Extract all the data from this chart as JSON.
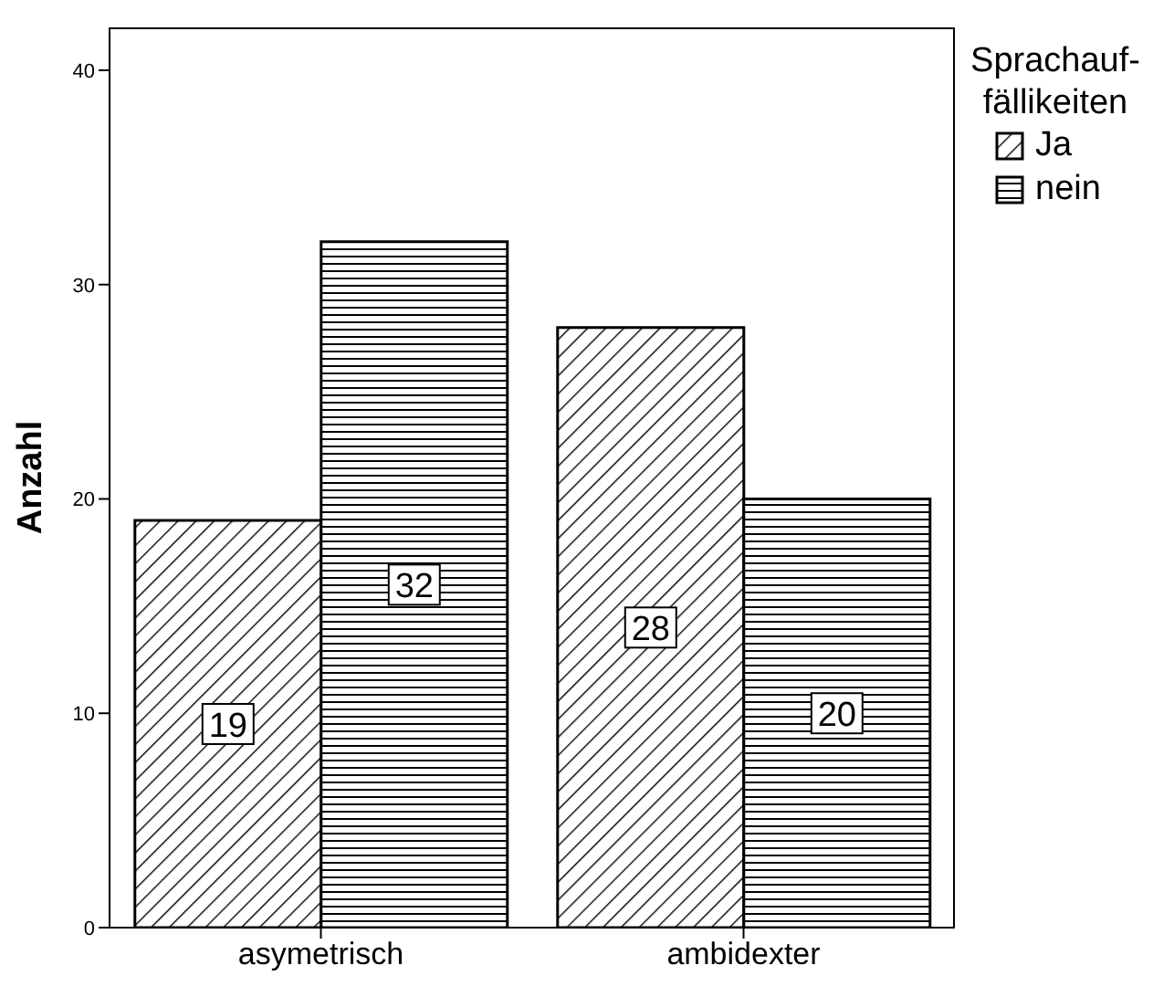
{
  "chart_data": {
    "type": "bar",
    "ylabel": "Anzahl",
    "legend_title": "Sprachauf-fällikeiten",
    "categories": [
      "asymetrisch",
      "ambidexter"
    ],
    "series": [
      {
        "name": "Ja",
        "color": "#000000",
        "values": [
          19,
          28
        ]
      },
      {
        "name": "nein",
        "color": "#000000",
        "values": [
          32,
          20
        ]
      }
    ],
    "ylim": [
      0,
      42
    ],
    "yticks": [
      0,
      10,
      20,
      30,
      40
    ],
    "legend": "top right",
    "data_labels": true
  }
}
